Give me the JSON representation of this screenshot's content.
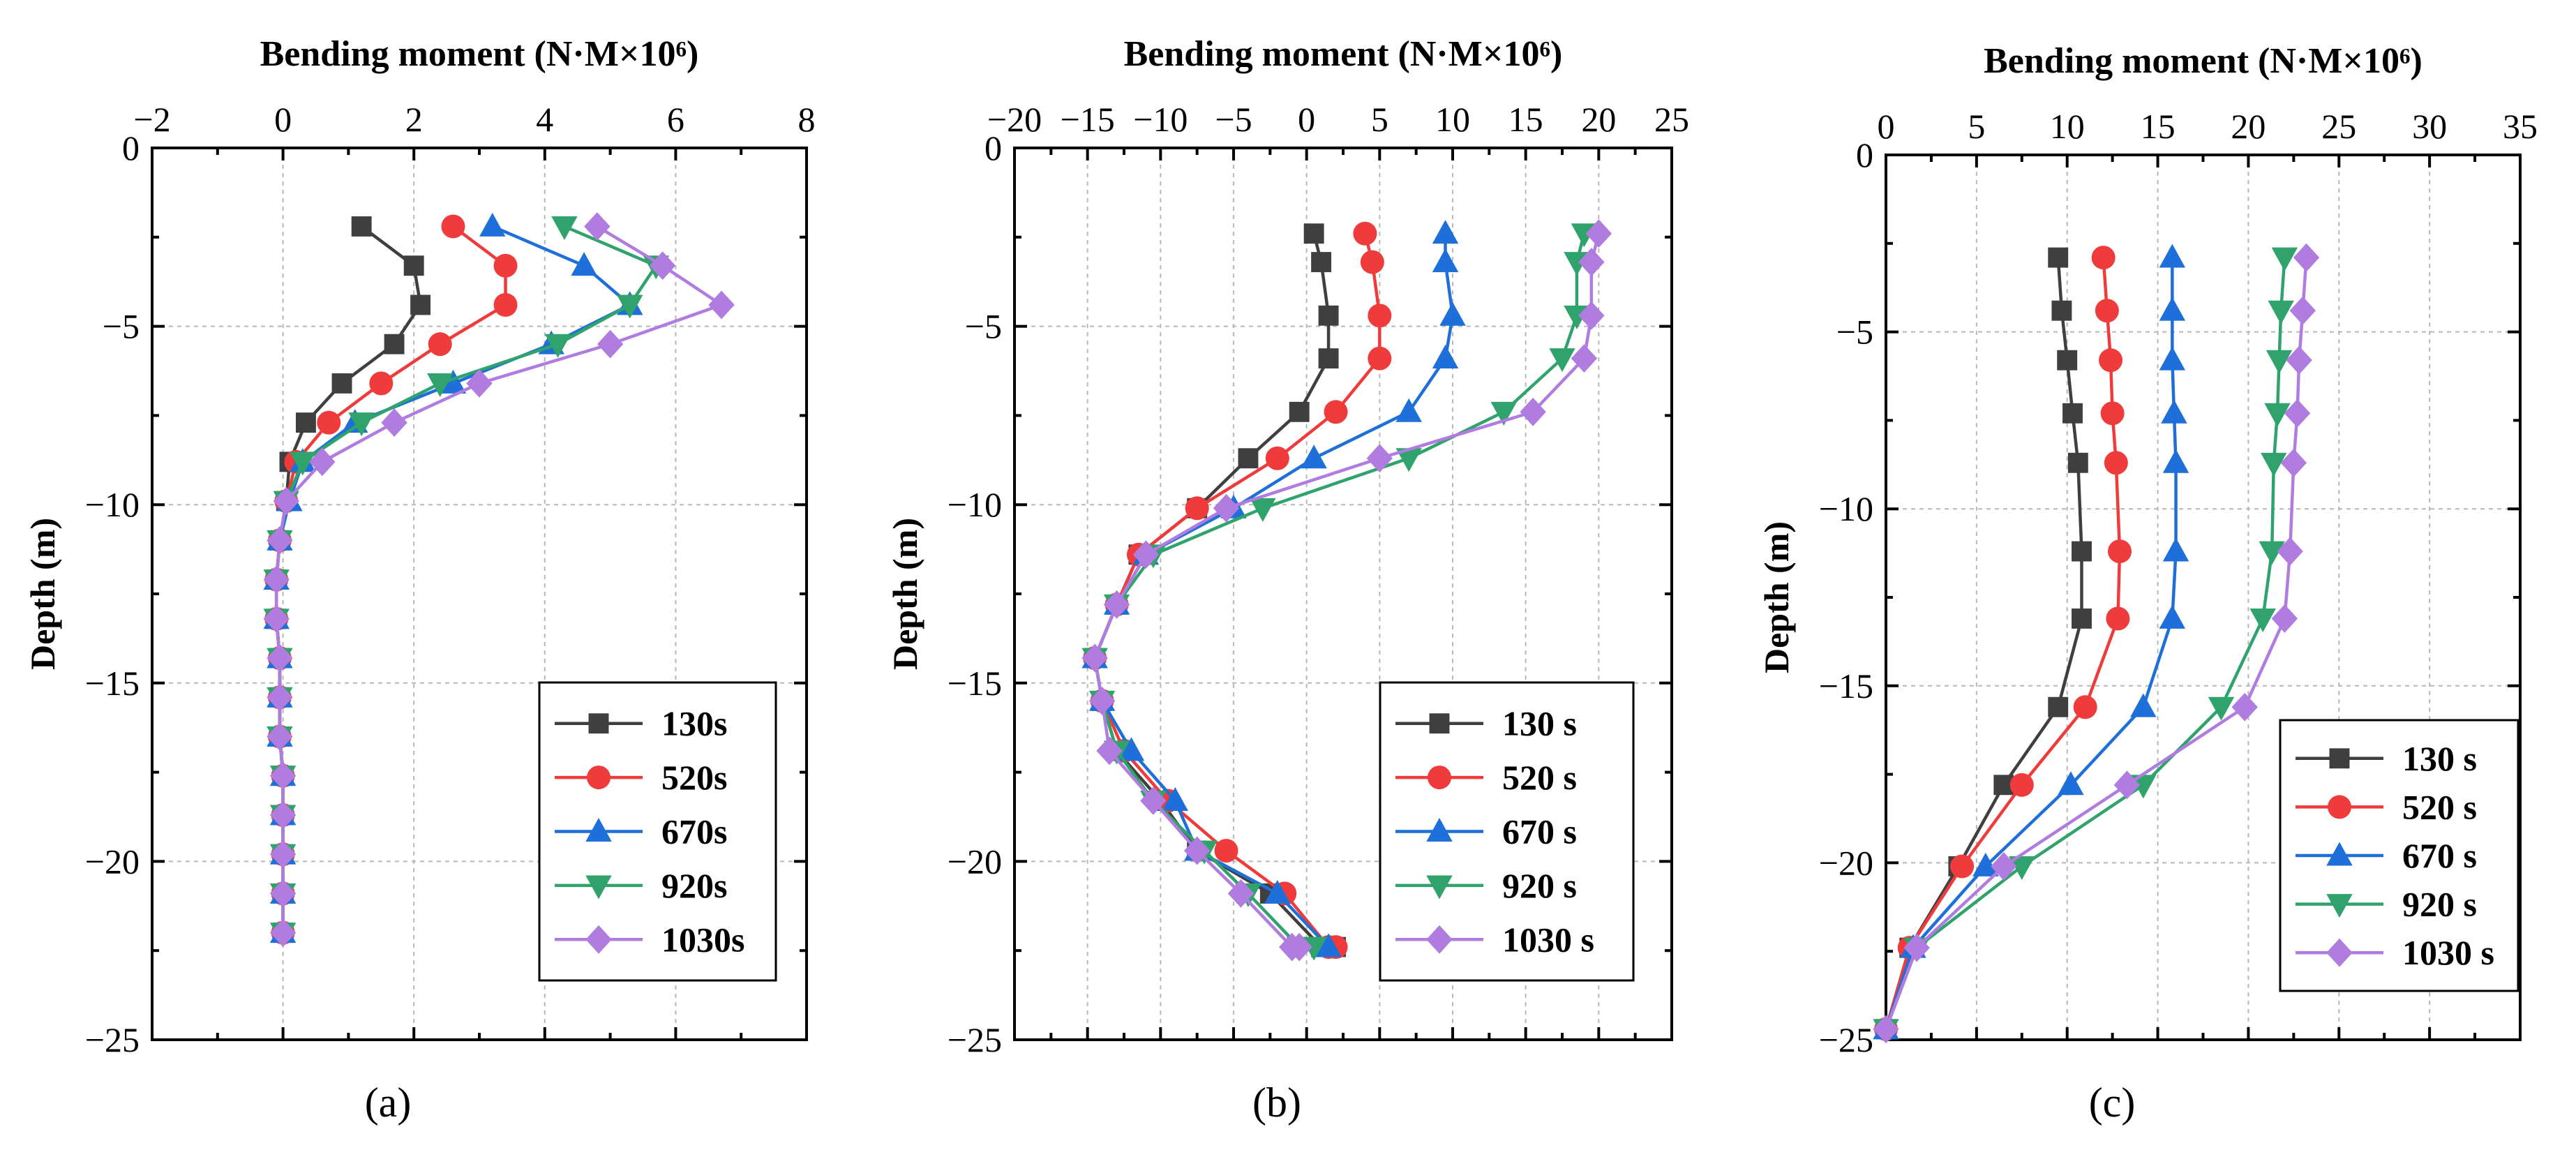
{
  "colors": {
    "130": "#3f3f3f",
    "520": "#ef3b3b",
    "670": "#1e6fd9",
    "920": "#2fa36b",
    "1030": "#b07ce0"
  },
  "chart_data": [
    {
      "type": "line",
      "panel_label": "(a)",
      "title": "Bending moment (N·M×10⁶)",
      "ylabel": "Depth (m)",
      "xlim": [
        -2,
        8
      ],
      "ylim": [
        -25,
        0
      ],
      "x_ticks": [
        -2,
        0,
        2,
        4,
        6,
        8
      ],
      "y_ticks": [
        0,
        -5,
        -10,
        -15,
        -20,
        -25
      ],
      "grid": true,
      "legend_position": "bottom-right",
      "series": [
        {
          "name": "130s",
          "marker": "square",
          "color_key": "130",
          "x": [
            1.2,
            2.0,
            2.1,
            1.7,
            0.9,
            0.35,
            0.1,
            0.05,
            -0.05,
            -0.1,
            -0.1,
            -0.05,
            -0.05,
            -0.05,
            0.0,
            0.0,
            0.0,
            0.0,
            0.0
          ],
          "y": [
            -2.2,
            -3.3,
            -4.4,
            -5.5,
            -6.6,
            -7.7,
            -8.8,
            -9.9,
            -11.0,
            -12.1,
            -13.2,
            -14.3,
            -15.4,
            -16.5,
            -17.6,
            -18.7,
            -19.8,
            -20.9,
            -22.0
          ]
        },
        {
          "name": "520s",
          "marker": "circle",
          "color_key": "520",
          "x": [
            2.6,
            3.4,
            3.4,
            2.4,
            1.5,
            0.7,
            0.2,
            0.05,
            -0.05,
            -0.1,
            -0.1,
            -0.05,
            -0.05,
            -0.05,
            0.0,
            0.0,
            0.0,
            0.0,
            0.0
          ],
          "y": [
            -2.2,
            -3.3,
            -4.4,
            -5.5,
            -6.6,
            -7.7,
            -8.8,
            -9.9,
            -11.0,
            -12.1,
            -13.2,
            -14.3,
            -15.4,
            -16.5,
            -17.6,
            -18.7,
            -19.8,
            -20.9,
            -22.0
          ]
        },
        {
          "name": "670s",
          "marker": "triangle-up",
          "color_key": "670",
          "x": [
            3.2,
            4.6,
            5.3,
            4.1,
            2.6,
            1.1,
            0.3,
            0.1,
            -0.05,
            -0.1,
            -0.1,
            -0.05,
            -0.05,
            -0.05,
            0.0,
            0.0,
            0.0,
            0.0,
            0.0
          ],
          "y": [
            -2.2,
            -3.3,
            -4.4,
            -5.5,
            -6.6,
            -7.7,
            -8.8,
            -9.9,
            -11.0,
            -12.1,
            -13.2,
            -14.3,
            -15.4,
            -16.5,
            -17.6,
            -18.7,
            -19.8,
            -20.9,
            -22.0
          ]
        },
        {
          "name": "920s",
          "marker": "triangle-down",
          "color_key": "920",
          "x": [
            4.3,
            5.7,
            5.3,
            4.2,
            2.4,
            1.2,
            0.3,
            0.05,
            -0.05,
            -0.1,
            -0.1,
            -0.05,
            -0.05,
            -0.05,
            0.0,
            0.0,
            0.0,
            0.0,
            0.0
          ],
          "y": [
            -2.2,
            -3.3,
            -4.4,
            -5.5,
            -6.6,
            -7.7,
            -8.8,
            -9.9,
            -11.0,
            -12.1,
            -13.2,
            -14.3,
            -15.4,
            -16.5,
            -17.6,
            -18.7,
            -19.8,
            -20.9,
            -22.0
          ]
        },
        {
          "name": "1030s",
          "marker": "diamond",
          "color_key": "1030",
          "x": [
            4.8,
            5.8,
            6.7,
            5.0,
            3.0,
            1.7,
            0.6,
            0.05,
            -0.05,
            -0.1,
            -0.1,
            -0.05,
            -0.05,
            -0.05,
            0.0,
            0.0,
            0.0,
            0.0,
            0.0
          ],
          "y": [
            -2.2,
            -3.3,
            -4.4,
            -5.5,
            -6.6,
            -7.7,
            -8.8,
            -9.9,
            -11.0,
            -12.1,
            -13.2,
            -14.3,
            -15.4,
            -16.5,
            -17.6,
            -18.7,
            -19.8,
            -20.9,
            -22.0
          ]
        }
      ]
    },
    {
      "type": "line",
      "panel_label": "(b)",
      "title": "Bending moment (N·M×10⁶)",
      "ylabel": "Depth (m)",
      "xlim": [
        -20,
        25
      ],
      "ylim": [
        -25,
        0
      ],
      "x_ticks": [
        -20,
        -15,
        -10,
        -5,
        0,
        5,
        10,
        15,
        20,
        25
      ],
      "y_ticks": [
        0,
        -5,
        -10,
        -15,
        -20,
        -25
      ],
      "grid": true,
      "legend_position": "bottom-right",
      "series": [
        {
          "name": "130 s",
          "marker": "square",
          "color_key": "130",
          "x": [
            0.5,
            1.0,
            1.5,
            1.5,
            -0.5,
            -4.0,
            -7.5,
            -11.5,
            -13.0,
            -14.5,
            -14.0,
            -13.0,
            -10.0,
            -7.5,
            -2.5,
            1.0,
            2.0
          ],
          "y": [
            -2.4,
            -3.2,
            -4.7,
            -5.9,
            -7.4,
            -8.7,
            -10.1,
            -11.4,
            -12.8,
            -14.3,
            -15.5,
            -16.9,
            -18.3,
            -19.7,
            -20.9,
            -22.4,
            -22.4
          ]
        },
        {
          "name": "520 s",
          "marker": "circle",
          "color_key": "520",
          "x": [
            4.0,
            4.5,
            5.0,
            5.0,
            2.0,
            -2.0,
            -7.5,
            -11.5,
            -13.0,
            -14.5,
            -14.0,
            -12.5,
            -9.5,
            -5.5,
            -1.5,
            1.5,
            2.0
          ],
          "y": [
            -2.4,
            -3.2,
            -4.7,
            -5.9,
            -7.4,
            -8.7,
            -10.1,
            -11.4,
            -12.8,
            -14.3,
            -15.5,
            -16.9,
            -18.3,
            -19.7,
            -20.9,
            -22.4,
            -22.4
          ]
        },
        {
          "name": "670 s",
          "marker": "triangle-up",
          "color_key": "670",
          "x": [
            9.5,
            9.5,
            10.0,
            9.5,
            7.0,
            0.5,
            -5.0,
            -11.0,
            -13.0,
            -14.5,
            -14.0,
            -12.0,
            -9.0,
            -7.5,
            -2.0,
            1.5,
            1.5
          ],
          "y": [
            -2.4,
            -3.2,
            -4.7,
            -5.9,
            -7.4,
            -8.7,
            -10.1,
            -11.4,
            -12.8,
            -14.3,
            -15.5,
            -16.9,
            -18.3,
            -19.7,
            -20.9,
            -22.4,
            -22.4
          ]
        },
        {
          "name": "920 s",
          "marker": "triangle-down",
          "color_key": "920",
          "x": [
            19.0,
            18.5,
            18.5,
            17.5,
            13.5,
            7.0,
            -3.0,
            -10.5,
            -13.0,
            -14.5,
            -14.0,
            -13.0,
            -10.5,
            -7.0,
            -4.0,
            -0.5,
            0.5
          ],
          "y": [
            -2.4,
            -3.2,
            -4.7,
            -5.9,
            -7.4,
            -8.7,
            -10.1,
            -11.4,
            -12.8,
            -14.3,
            -15.5,
            -16.9,
            -18.3,
            -19.7,
            -20.9,
            -22.4,
            -22.4
          ]
        },
        {
          "name": "1030 s",
          "marker": "diamond",
          "color_key": "1030",
          "x": [
            20.0,
            19.5,
            19.5,
            19.0,
            15.5,
            5.0,
            -5.5,
            -11.0,
            -13.0,
            -14.5,
            -14.0,
            -13.5,
            -10.5,
            -7.5,
            -4.5,
            -1.0,
            -0.5
          ],
          "y": [
            -2.4,
            -3.2,
            -4.7,
            -5.9,
            -7.4,
            -8.7,
            -10.1,
            -11.4,
            -12.8,
            -14.3,
            -15.5,
            -16.9,
            -18.3,
            -19.7,
            -20.9,
            -22.4,
            -22.4
          ]
        }
      ]
    },
    {
      "type": "line",
      "panel_label": "(c)",
      "title": "Bending moment (N·M×10⁶)",
      "ylabel": "Depth (m)",
      "xlim": [
        0,
        35
      ],
      "ylim": [
        -25,
        0
      ],
      "x_ticks": [
        0,
        5,
        10,
        15,
        20,
        25,
        30,
        35
      ],
      "y_ticks": [
        0,
        -5,
        -10,
        -15,
        -20,
        -25
      ],
      "grid": true,
      "legend_position": "bottom-right",
      "series": [
        {
          "name": "130 s",
          "marker": "square",
          "color_key": "130",
          "x": [
            9.5,
            9.7,
            10.0,
            10.3,
            10.6,
            10.8,
            10.8,
            9.5,
            6.5,
            4.0,
            1.3,
            0.0
          ],
          "y": [
            -2.9,
            -4.4,
            -5.8,
            -7.3,
            -8.7,
            -11.2,
            -13.1,
            -15.6,
            -17.8,
            -20.1,
            -22.4,
            -24.7
          ]
        },
        {
          "name": "520 s",
          "marker": "circle",
          "color_key": "520",
          "x": [
            12.0,
            12.2,
            12.4,
            12.5,
            12.7,
            12.9,
            12.8,
            11.0,
            7.5,
            4.2,
            1.3,
            0.0
          ],
          "y": [
            -2.9,
            -4.4,
            -5.8,
            -7.3,
            -8.7,
            -11.2,
            -13.1,
            -15.6,
            -17.8,
            -20.1,
            -22.4,
            -24.7
          ]
        },
        {
          "name": "670 s",
          "marker": "triangle-up",
          "color_key": "670",
          "x": [
            15.8,
            15.8,
            15.8,
            15.9,
            16.0,
            16.0,
            15.8,
            14.2,
            10.2,
            5.5,
            1.5,
            0.0
          ],
          "y": [
            -2.9,
            -4.4,
            -5.8,
            -7.3,
            -8.7,
            -11.2,
            -13.1,
            -15.6,
            -17.8,
            -20.1,
            -22.4,
            -24.7
          ]
        },
        {
          "name": "920 s",
          "marker": "triangle-down",
          "color_key": "920",
          "x": [
            22.0,
            21.8,
            21.7,
            21.6,
            21.4,
            21.3,
            20.8,
            18.5,
            14.2,
            7.5,
            1.7,
            0.0
          ],
          "y": [
            -2.9,
            -4.4,
            -5.8,
            -7.3,
            -8.7,
            -11.2,
            -13.1,
            -15.6,
            -17.8,
            -20.1,
            -22.4,
            -24.7
          ]
        },
        {
          "name": "1030 s",
          "marker": "diamond",
          "color_key": "1030",
          "x": [
            23.2,
            23.0,
            22.8,
            22.7,
            22.5,
            22.3,
            22.0,
            19.8,
            13.3,
            6.5,
            1.7,
            0.0
          ],
          "y": [
            -2.9,
            -4.4,
            -5.8,
            -7.3,
            -8.7,
            -11.2,
            -13.1,
            -15.6,
            -17.8,
            -20.1,
            -22.4,
            -24.7
          ]
        }
      ]
    }
  ]
}
